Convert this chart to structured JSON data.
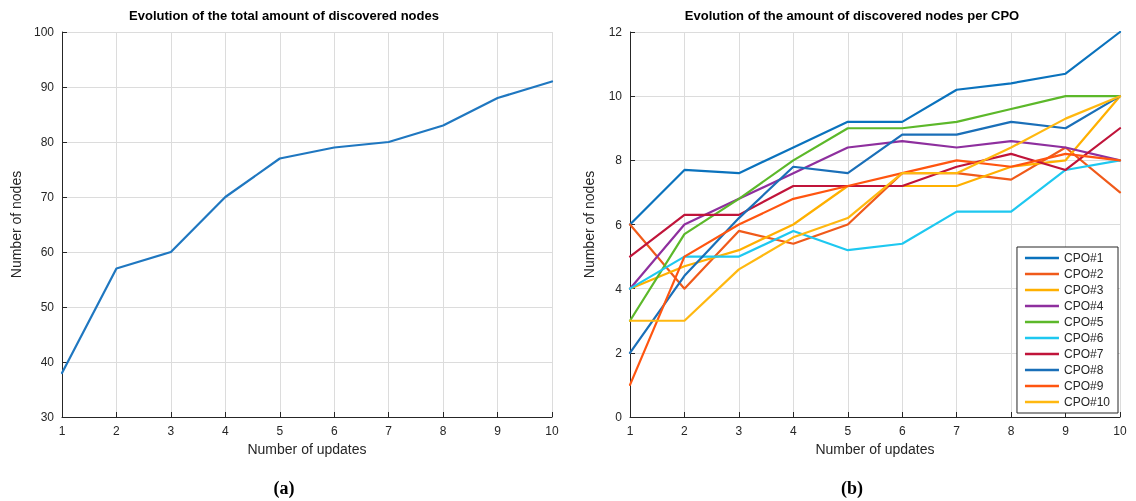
{
  "chart_data": [
    {
      "type": "line",
      "title": "Evolution of the total amount of discovered nodes",
      "xlabel": "Number of updates",
      "ylabel": "Number of nodes",
      "annotations": [
        "(a)"
      ],
      "x": [
        1,
        2,
        3,
        4,
        5,
        6,
        7,
        8,
        9,
        10
      ],
      "series": [
        {
          "color": "#1f77c0",
          "values": [
            38,
            57,
            60,
            70,
            77,
            79,
            80,
            83,
            88,
            91
          ]
        }
      ],
      "xlim": [
        1,
        10
      ],
      "xticks": [
        1,
        2,
        3,
        4,
        5,
        6,
        7,
        8,
        9,
        10
      ],
      "ylim": [
        30,
        100
      ],
      "yticks": [
        30,
        40,
        50,
        60,
        70,
        80,
        90,
        100
      ],
      "grid": true,
      "legend": false,
      "marker": "none",
      "line_style": "solid"
    },
    {
      "type": "line",
      "title": "Evolution of the amount of discovered nodes per CPO",
      "xlabel": "Number of updates",
      "ylabel": "Number of nodes",
      "annotations": [
        "(b)"
      ],
      "x": [
        1,
        2,
        3,
        4,
        5,
        6,
        7,
        8,
        9,
        10
      ],
      "series": [
        {
          "name": "CPO#1",
          "color": "#0a72bd",
          "values": [
            6,
            7.7,
            7.6,
            8.4,
            9.2,
            9.2,
            10.2,
            10.4,
            10.7,
            12
          ]
        },
        {
          "name": "CPO#2",
          "color": "#f05a1a",
          "values": [
            6,
            4,
            5.8,
            5.4,
            6,
            7.6,
            7.6,
            7.4,
            8.4,
            7
          ]
        },
        {
          "name": "CPO#3",
          "color": "#ffb000",
          "values": [
            4,
            4.7,
            5.2,
            6,
            7.2,
            7.2,
            7.2,
            7.8,
            8,
            10
          ]
        },
        {
          "name": "CPO#4",
          "color": "#8e2f9e",
          "values": [
            4,
            6,
            6.8,
            7.6,
            8.4,
            8.6,
            8.4,
            8.6,
            8.4,
            8
          ]
        },
        {
          "name": "CPO#5",
          "color": "#5cb82a",
          "values": [
            3,
            5.7,
            6.8,
            8,
            9,
            9,
            9.2,
            9.6,
            10,
            10
          ]
        },
        {
          "name": "CPO#6",
          "color": "#1ec8f0",
          "values": [
            4,
            5,
            5,
            5.8,
            5.2,
            5.4,
            6.4,
            6.4,
            7.7,
            8
          ]
        },
        {
          "name": "CPO#7",
          "color": "#c0143a",
          "values": [
            5,
            6.3,
            6.3,
            7.2,
            7.2,
            7.2,
            7.8,
            8.2,
            7.7,
            9
          ]
        },
        {
          "name": "CPO#8",
          "color": "#1a6fb8",
          "values": [
            2,
            4.4,
            6.2,
            7.8,
            7.6,
            8.8,
            8.8,
            9.2,
            9,
            10
          ]
        },
        {
          "name": "CPO#9",
          "color": "#ff5510",
          "values": [
            1,
            5,
            6,
            6.8,
            7.2,
            7.6,
            8,
            7.8,
            8.2,
            8
          ]
        },
        {
          "name": "CPO#10",
          "color": "#ffb810",
          "values": [
            3,
            3,
            4.6,
            5.6,
            6.2,
            7.6,
            7.6,
            8.4,
            9.3,
            10
          ]
        }
      ],
      "xlim": [
        1,
        10
      ],
      "xticks": [
        1,
        2,
        3,
        4,
        5,
        6,
        7,
        8,
        9,
        10
      ],
      "ylim": [
        0,
        12
      ],
      "yticks": [
        0,
        2,
        4,
        6,
        8,
        10,
        12
      ],
      "grid": true,
      "legend": "bottom right",
      "marker": "none",
      "line_style": "solid"
    }
  ]
}
